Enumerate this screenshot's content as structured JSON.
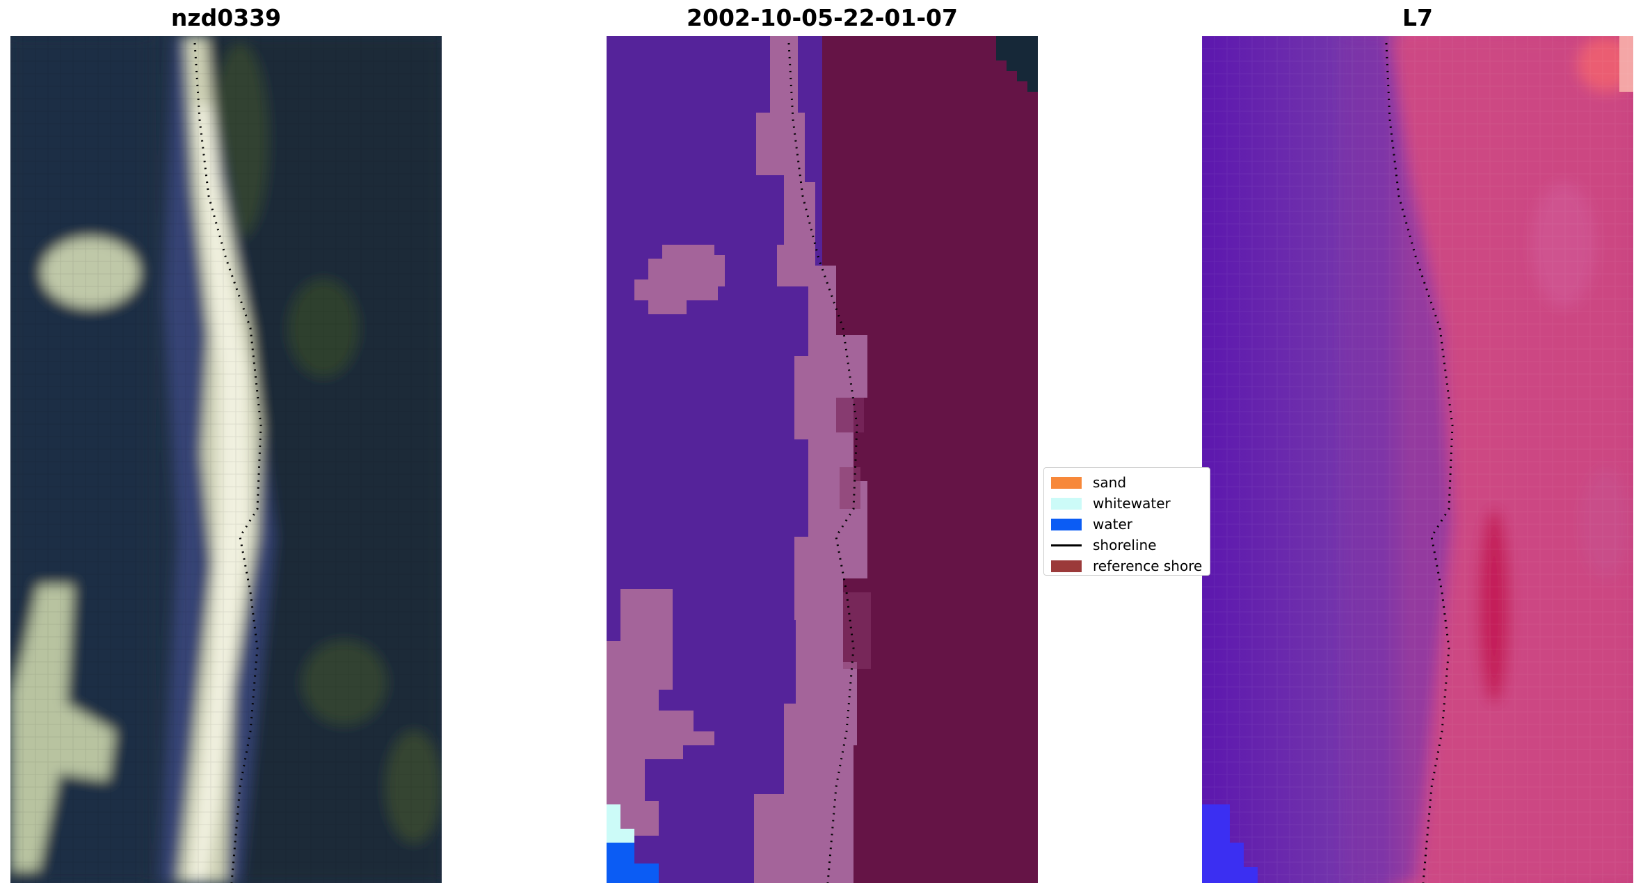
{
  "panels": {
    "left": {
      "title": "nzd0339"
    },
    "middle": {
      "title": "2002-10-05-22-01-07"
    },
    "right": {
      "title": "L7"
    }
  },
  "legend": {
    "items": [
      {
        "label": "sand",
        "color": "#f7883a"
      },
      {
        "label": "whitewater",
        "color": "#ccfbf8"
      },
      {
        "label": "water",
        "color": "#0b5cf4"
      },
      {
        "label": "shoreline",
        "color": "#000000"
      },
      {
        "label": "reference shore",
        "color": "#9b3a3a"
      }
    ]
  },
  "colors": {
    "classified_water": "#55239a",
    "classified_sand": "#a4649a",
    "classified_land": "#651446",
    "ndwi_low": "#5a1aa8",
    "ndwi_high": "#d44d86"
  }
}
